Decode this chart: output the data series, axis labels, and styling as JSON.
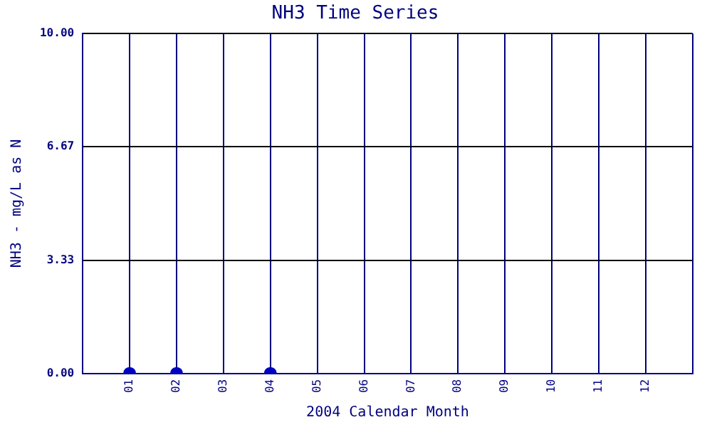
{
  "chart_data": {
    "type": "scatter",
    "title": "NH3 Time Series",
    "xlabel": "2004 Calendar Month",
    "ylabel": "NH3 - mg/L as N",
    "categories": [
      null,
      "01",
      "02",
      "03",
      "04",
      "05",
      "06",
      "07",
      "08",
      "09",
      "10",
      "11",
      "12",
      null
    ],
    "series": [
      {
        "color": "#0000c0",
        "values": [
          null,
          0,
          0,
          null,
          0,
          null,
          null,
          null,
          null,
          null,
          null,
          null,
          null,
          null
        ]
      }
    ],
    "ylim": [
      0,
      10
    ],
    "yticks": [
      {
        "value": 0,
        "label": "0.00"
      },
      {
        "value": 3.33,
        "label": "3.33"
      },
      {
        "value": 6.67,
        "label": "6.67"
      },
      {
        "value": 10,
        "label": "10.00"
      }
    ],
    "grid": true,
    "legend": false,
    "marker": "circle"
  }
}
